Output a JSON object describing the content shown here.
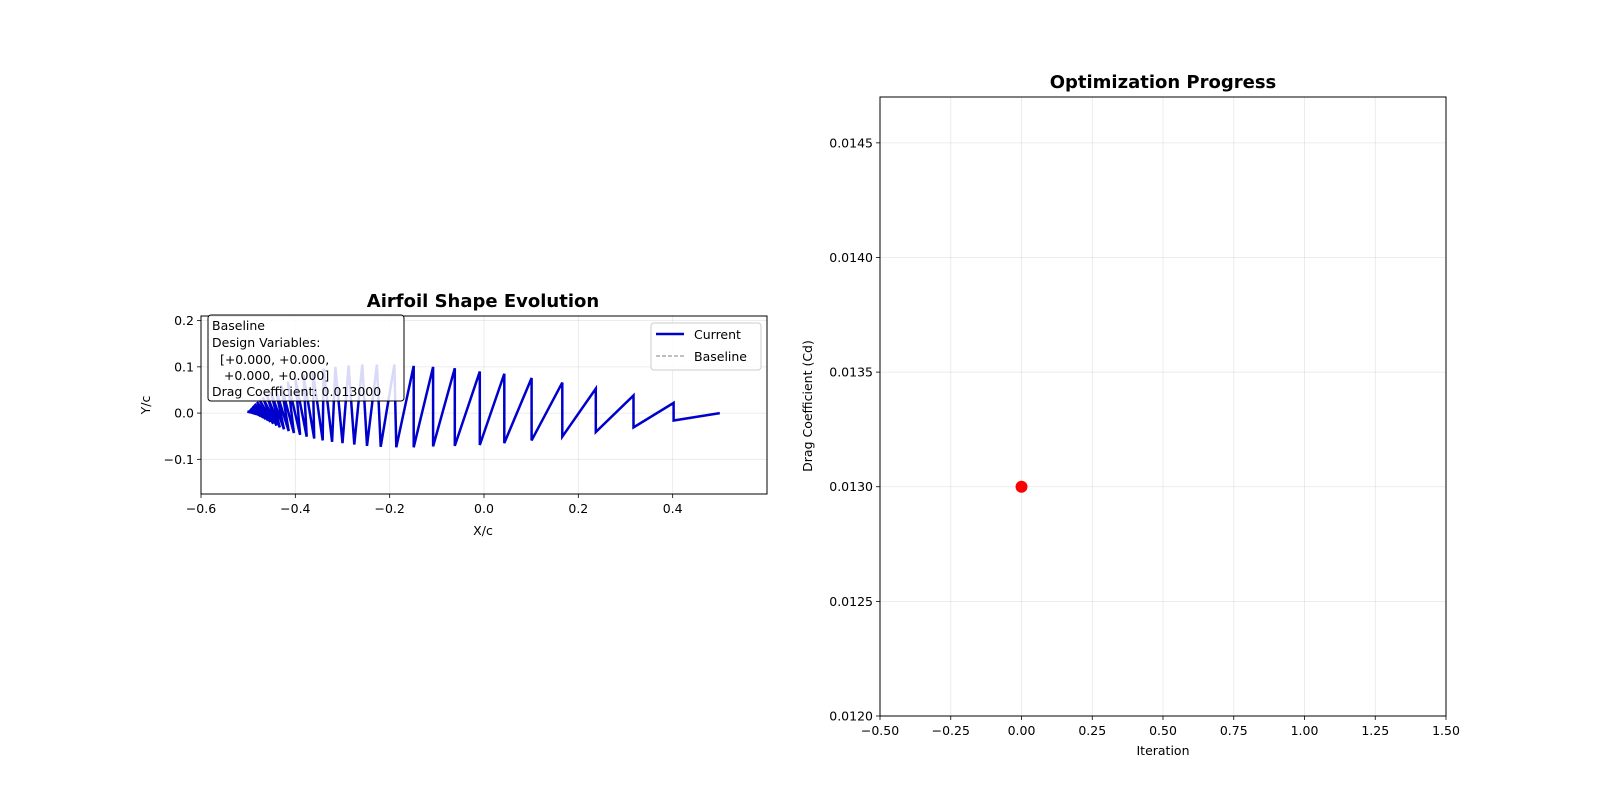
{
  "chart_data": [
    {
      "type": "line",
      "title": "Airfoil Shape Evolution",
      "xlabel": "X/c",
      "ylabel": "Y/c",
      "xlim": [
        -0.6,
        0.6
      ],
      "ylim": [
        -0.175,
        0.21
      ],
      "xticks": [
        -0.6,
        -0.4,
        -0.2,
        0.0,
        0.2,
        0.4
      ],
      "xtick_labels": [
        "−0.6",
        "−0.4",
        "−0.2",
        "0.0",
        "0.2",
        "0.4"
      ],
      "yticks": [
        -0.1,
        0.0,
        0.1,
        0.2
      ],
      "ytick_labels": [
        "−0.1",
        "0.0",
        "0.1",
        "0.2"
      ],
      "grid": true,
      "legend_position": "top-right",
      "series": [
        {
          "name": "Current",
          "color": "#0000cc",
          "style": "solid",
          "points": [
            [
              0.5,
              0.0
            ],
            [
              0.402,
              -0.016
            ],
            [
              0.402,
              0.022
            ],
            [
              0.317,
              -0.031
            ],
            [
              0.317,
              0.038
            ],
            [
              0.237,
              -0.041
            ],
            [
              0.237,
              0.053
            ],
            [
              0.166,
              -0.051
            ],
            [
              0.166,
              0.066
            ],
            [
              0.101,
              -0.059
            ],
            [
              0.101,
              0.076
            ],
            [
              0.043,
              -0.065
            ],
            [
              0.043,
              0.085
            ],
            [
              -0.009,
              -0.069
            ],
            [
              -0.009,
              0.09
            ],
            [
              -0.062,
              -0.071
            ],
            [
              -0.062,
              0.097
            ],
            [
              -0.108,
              -0.072
            ],
            [
              -0.108,
              0.1
            ],
            [
              -0.149,
              -0.074
            ],
            [
              -0.149,
              0.102
            ],
            [
              -0.186,
              -0.074
            ],
            [
              -0.19,
              0.105
            ],
            [
              -0.219,
              -0.073
            ],
            [
              -0.227,
              0.105
            ],
            [
              -0.248,
              -0.071
            ],
            [
              -0.258,
              0.105
            ],
            [
              -0.275,
              -0.068
            ],
            [
              -0.287,
              0.103
            ],
            [
              -0.3,
              -0.065
            ],
            [
              -0.315,
              0.1
            ],
            [
              -0.322,
              -0.062
            ],
            [
              -0.34,
              0.096
            ],
            [
              -0.342,
              -0.059
            ],
            [
              -0.363,
              0.09
            ],
            [
              -0.36,
              -0.055
            ],
            [
              -0.383,
              0.083
            ],
            [
              -0.376,
              -0.051
            ],
            [
              -0.4,
              0.075
            ],
            [
              -0.39,
              -0.047
            ],
            [
              -0.416,
              0.068
            ],
            [
              -0.403,
              -0.043
            ],
            [
              -0.43,
              0.06
            ],
            [
              -0.414,
              -0.039
            ],
            [
              -0.442,
              0.053
            ],
            [
              -0.424,
              -0.035
            ],
            [
              -0.452,
              0.046
            ],
            [
              -0.433,
              -0.031
            ],
            [
              -0.461,
              0.04
            ],
            [
              -0.44,
              -0.027
            ],
            [
              -0.469,
              0.034
            ],
            [
              -0.447,
              -0.023
            ],
            [
              -0.476,
              0.029
            ],
            [
              -0.453,
              -0.019
            ],
            [
              -0.481,
              0.024
            ],
            [
              -0.458,
              -0.016
            ],
            [
              -0.486,
              0.02
            ],
            [
              -0.463,
              -0.013
            ],
            [
              -0.49,
              0.016
            ],
            [
              -0.468,
              -0.01
            ],
            [
              -0.493,
              0.012
            ],
            [
              -0.473,
              -0.007
            ],
            [
              -0.496,
              0.009
            ],
            [
              -0.478,
              -0.004
            ],
            [
              -0.498,
              0.006
            ],
            [
              -0.483,
              -0.002
            ],
            [
              -0.499,
              0.003
            ],
            [
              -0.5,
              0.0
            ]
          ]
        },
        {
          "name": "Baseline",
          "color": "#808080",
          "style": "dashed",
          "points": []
        }
      ],
      "annotation": {
        "lines": [
          "Baseline",
          "Design Variables:",
          "  [+0.000, +0.000,",
          "   +0.000, +0.000]",
          "Drag Coefficient: 0.013000"
        ]
      }
    },
    {
      "type": "scatter",
      "title": "Optimization Progress",
      "xlabel": "Iteration",
      "ylabel": "Drag Coefficient (Cd)",
      "xlim": [
        -0.5,
        1.5
      ],
      "ylim": [
        0.012,
        0.0147
      ],
      "xticks": [
        -0.5,
        -0.25,
        0.0,
        0.25,
        0.5,
        0.75,
        1.0,
        1.25,
        1.5
      ],
      "xtick_labels": [
        "−0.50",
        "−0.25",
        "0.00",
        "0.25",
        "0.50",
        "0.75",
        "1.00",
        "1.25",
        "1.50"
      ],
      "yticks": [
        0.012,
        0.0125,
        0.013,
        0.0135,
        0.014,
        0.0145
      ],
      "ytick_labels": [
        "0.0120",
        "0.0125",
        "0.0130",
        "0.0135",
        "0.0140",
        "0.0145"
      ],
      "grid": true,
      "series": [
        {
          "color": "#ff0000",
          "points": [
            [
              0,
              0.013
            ]
          ]
        }
      ]
    }
  ]
}
